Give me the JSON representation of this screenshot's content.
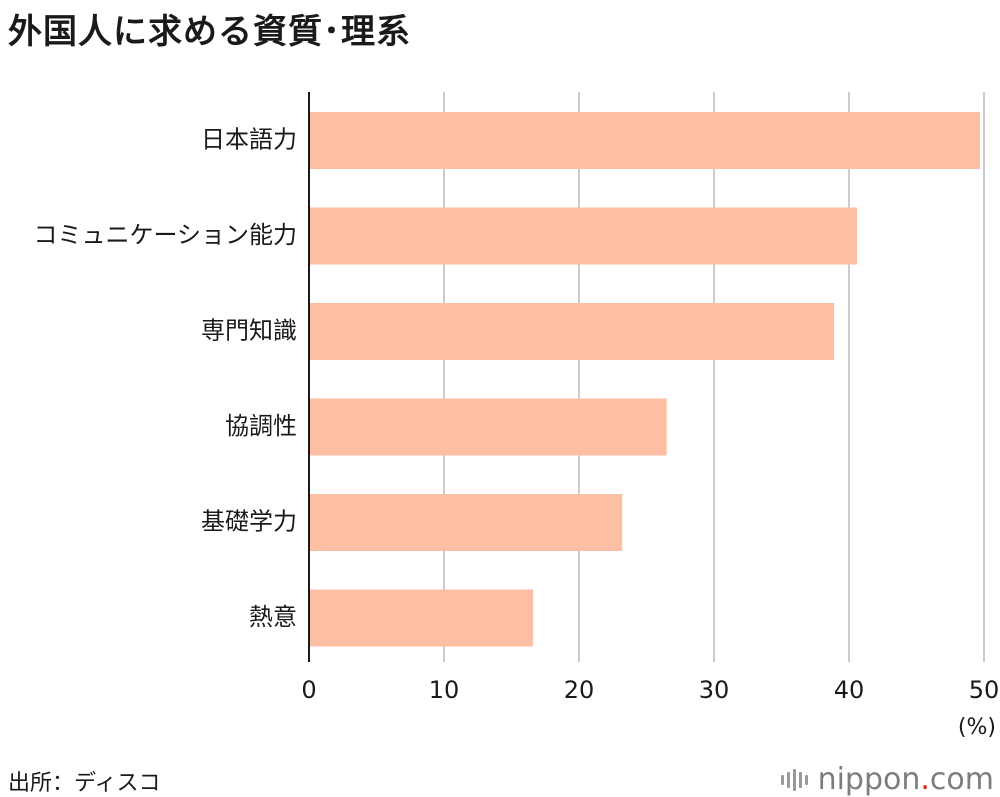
{
  "title": "外国人に求める資質･理系",
  "source": "出所：ディスコ",
  "logo": {
    "name": "nippon",
    "dot": ".",
    "tld": "com"
  },
  "colors": {
    "bar": "#fcbfa4",
    "grid": "#cccccc",
    "axis": "#1a1a1a"
  },
  "chart_data": {
    "type": "bar",
    "orientation": "horizontal",
    "title": "外国人に求める資質･理系",
    "categories": [
      "日本語力",
      "コミュニケーション能力",
      "専門知識",
      "協調性",
      "基礎学力",
      "熱意"
    ],
    "values": [
      49.7,
      40.6,
      38.9,
      26.5,
      23.2,
      16.6
    ],
    "xlim": [
      0,
      50
    ],
    "xticks": [
      0,
      10,
      20,
      30,
      40,
      50
    ],
    "xlabel": "(%)",
    "ylabel": "",
    "grid": true,
    "source": "出所：ディスコ"
  }
}
